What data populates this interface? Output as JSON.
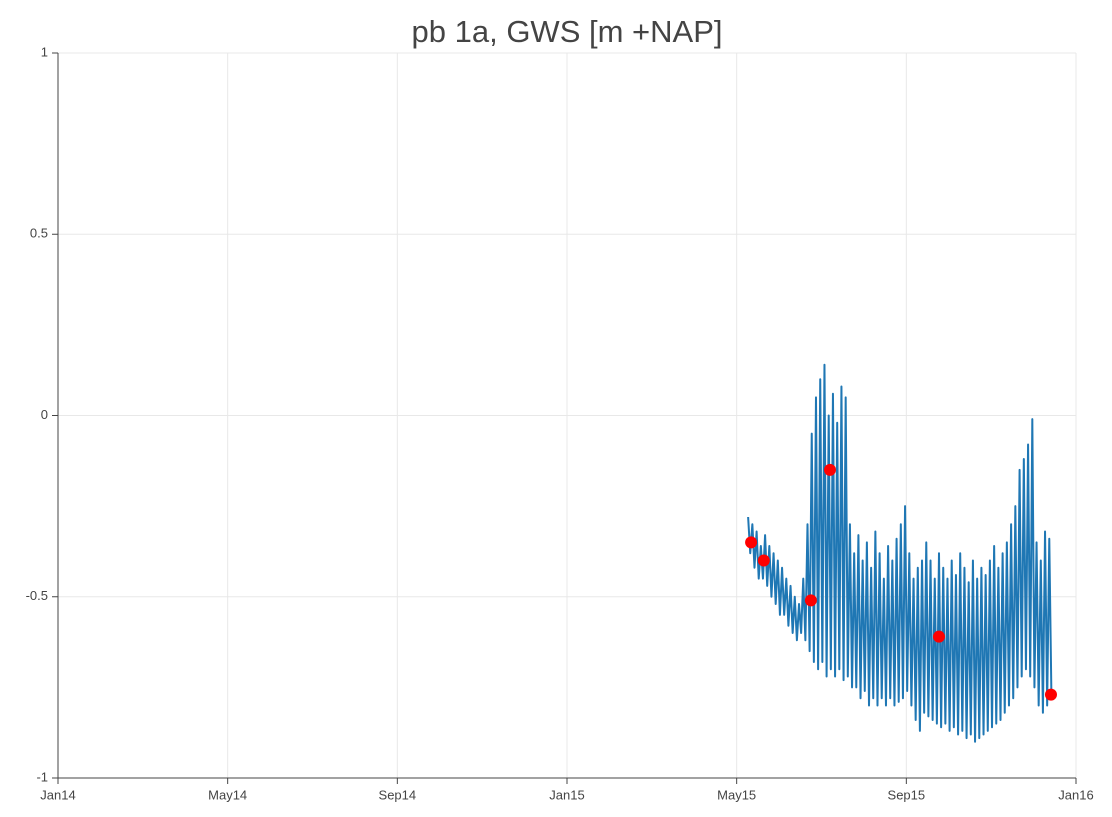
{
  "chart_data": {
    "type": "line",
    "title": "pb 1a, GWS [m +NAP]",
    "xlim": [
      0,
      24
    ],
    "xticks": [
      {
        "value": 0,
        "label": "Jan14"
      },
      {
        "value": 4,
        "label": "May14"
      },
      {
        "value": 8,
        "label": "Sep14"
      },
      {
        "value": 12,
        "label": "Jan15"
      },
      {
        "value": 16,
        "label": "May15"
      },
      {
        "value": 20,
        "label": "Sep15"
      },
      {
        "value": 24,
        "label": "Jan16"
      }
    ],
    "ylim": [
      -1,
      1
    ],
    "yticks": [
      -1,
      -0.5,
      0,
      0.5,
      1
    ],
    "grid": true,
    "series": [
      {
        "type": "line",
        "color": "#1f77b4",
        "x": [
          16.27,
          16.32,
          16.37,
          16.42,
          16.47,
          16.52,
          16.57,
          16.62,
          16.67,
          16.72,
          16.77,
          16.82,
          16.87,
          16.92,
          16.97,
          17.02,
          17.07,
          17.12,
          17.17,
          17.22,
          17.27,
          17.32,
          17.37,
          17.42,
          17.47,
          17.52,
          17.57,
          17.62,
          17.67,
          17.72,
          17.77,
          17.82,
          17.87,
          17.92,
          17.97,
          18.02,
          18.07,
          18.12,
          18.17,
          18.22,
          18.27,
          18.32,
          18.37,
          18.42,
          18.47,
          18.52,
          18.57,
          18.62,
          18.67,
          18.72,
          18.77,
          18.82,
          18.87,
          18.92,
          18.97,
          19.02,
          19.07,
          19.12,
          19.17,
          19.22,
          19.27,
          19.32,
          19.37,
          19.42,
          19.47,
          19.52,
          19.57,
          19.62,
          19.67,
          19.72,
          19.77,
          19.82,
          19.87,
          19.92,
          19.97,
          20.02,
          20.07,
          20.12,
          20.17,
          20.22,
          20.27,
          20.32,
          20.37,
          20.42,
          20.47,
          20.52,
          20.57,
          20.62,
          20.67,
          20.72,
          20.77,
          20.82,
          20.87,
          20.92,
          20.97,
          21.02,
          21.07,
          21.12,
          21.17,
          21.22,
          21.27,
          21.32,
          21.37,
          21.42,
          21.47,
          21.52,
          21.57,
          21.62,
          21.67,
          21.72,
          21.77,
          21.82,
          21.87,
          21.92,
          21.97,
          22.02,
          22.07,
          22.12,
          22.17,
          22.22,
          22.27,
          22.32,
          22.37,
          22.42,
          22.47,
          22.52,
          22.57,
          22.62,
          22.67,
          22.72,
          22.77,
          22.82,
          22.87,
          22.92,
          22.97,
          23.02,
          23.07,
          23.12,
          23.17,
          23.22,
          23.27,
          23.32,
          23.37,
          23.42
        ],
        "values": [
          -0.28,
          -0.38,
          -0.3,
          -0.42,
          -0.32,
          -0.45,
          -0.36,
          -0.45,
          -0.33,
          -0.47,
          -0.36,
          -0.5,
          -0.38,
          -0.52,
          -0.4,
          -0.55,
          -0.42,
          -0.55,
          -0.45,
          -0.58,
          -0.47,
          -0.6,
          -0.5,
          -0.62,
          -0.52,
          -0.6,
          -0.45,
          -0.62,
          -0.3,
          -0.65,
          -0.05,
          -0.68,
          0.05,
          -0.7,
          0.1,
          -0.68,
          0.14,
          -0.72,
          0.0,
          -0.7,
          0.06,
          -0.72,
          -0.02,
          -0.7,
          0.08,
          -0.73,
          0.05,
          -0.72,
          -0.3,
          -0.75,
          -0.38,
          -0.75,
          -0.33,
          -0.78,
          -0.4,
          -0.76,
          -0.35,
          -0.8,
          -0.42,
          -0.78,
          -0.32,
          -0.8,
          -0.38,
          -0.78,
          -0.45,
          -0.8,
          -0.36,
          -0.78,
          -0.4,
          -0.8,
          -0.34,
          -0.79,
          -0.3,
          -0.78,
          -0.25,
          -0.76,
          -0.38,
          -0.8,
          -0.45,
          -0.84,
          -0.42,
          -0.87,
          -0.4,
          -0.82,
          -0.35,
          -0.83,
          -0.4,
          -0.84,
          -0.45,
          -0.85,
          -0.38,
          -0.86,
          -0.42,
          -0.85,
          -0.45,
          -0.87,
          -0.4,
          -0.86,
          -0.44,
          -0.88,
          -0.38,
          -0.87,
          -0.42,
          -0.89,
          -0.46,
          -0.88,
          -0.4,
          -0.9,
          -0.45,
          -0.89,
          -0.42,
          -0.88,
          -0.44,
          -0.87,
          -0.4,
          -0.86,
          -0.36,
          -0.85,
          -0.42,
          -0.84,
          -0.38,
          -0.82,
          -0.35,
          -0.8,
          -0.3,
          -0.78,
          -0.25,
          -0.75,
          -0.15,
          -0.72,
          -0.12,
          -0.7,
          -0.08,
          -0.72,
          -0.01,
          -0.75,
          -0.35,
          -0.8,
          -0.4,
          -0.82,
          -0.32,
          -0.8,
          -0.34,
          -0.77
        ]
      },
      {
        "type": "scatter",
        "color": "#ff0000",
        "x": [
          16.34,
          16.64,
          17.75,
          18.2,
          20.77,
          23.41
        ],
        "values": [
          -0.35,
          -0.4,
          -0.51,
          -0.15,
          -0.61,
          -0.77
        ]
      }
    ]
  }
}
